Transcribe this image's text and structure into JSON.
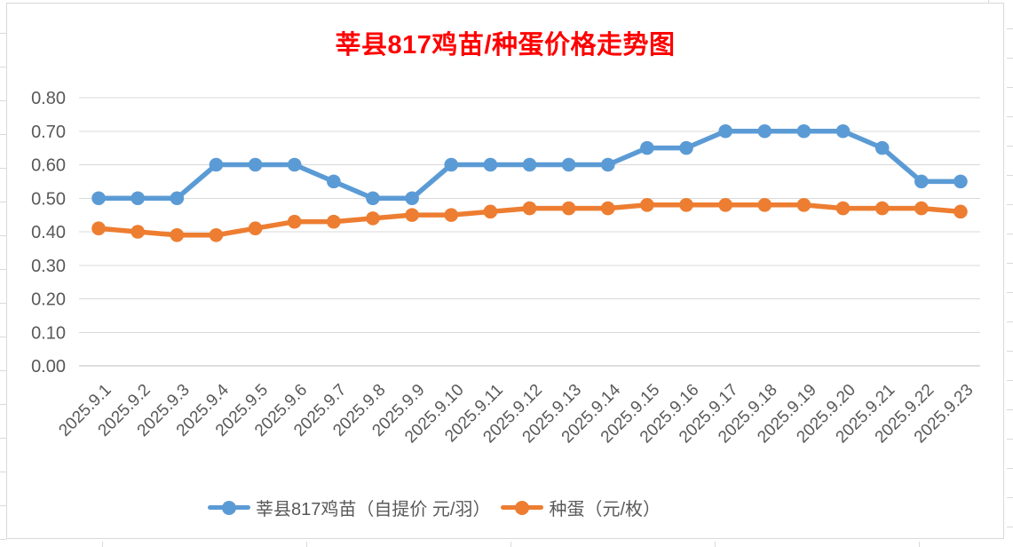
{
  "title": "莘县817鸡苗/种蛋价格走势图",
  "colors": {
    "title": "#FF0000",
    "axis_text": "#595959",
    "gridline": "#D9D9D9",
    "axis_line": "#BFBFBF",
    "chart_border": "#D9D9D9",
    "series1": "#5B9BD5",
    "series2": "#ED7D31"
  },
  "chart_data": {
    "type": "line",
    "title": "莘县817鸡苗/种蛋价格走势图",
    "categories": [
      "2025.9.1",
      "2025.9.2",
      "2025.9.3",
      "2025.9.4",
      "2025.9.5",
      "2025.9.6",
      "2025.9.7",
      "2025.9.8",
      "2025.9.9",
      "2025.9.10",
      "2025.9.11",
      "2025.9.12",
      "2025.9.13",
      "2025.9.14",
      "2025.9.15",
      "2025.9.16",
      "2025.9.17",
      "2025.9.18",
      "2025.9.19",
      "2025.9.20",
      "2025.9.21",
      "2025.9.22",
      "2025.9.23"
    ],
    "series": [
      {
        "name": "莘县817鸡苗（自提价 元/羽）",
        "color": "#5B9BD5",
        "values": [
          0.5,
          0.5,
          0.5,
          0.6,
          0.6,
          0.6,
          0.55,
          0.5,
          0.5,
          0.6,
          0.6,
          0.6,
          0.6,
          0.6,
          0.65,
          0.65,
          0.7,
          0.7,
          0.7,
          0.7,
          0.65,
          0.55,
          0.55
        ]
      },
      {
        "name": "种蛋（元/枚）",
        "color": "#ED7D31",
        "values": [
          0.41,
          0.4,
          0.39,
          0.39,
          0.41,
          0.43,
          0.43,
          0.44,
          0.45,
          0.45,
          0.46,
          0.47,
          0.47,
          0.47,
          0.48,
          0.48,
          0.48,
          0.48,
          0.48,
          0.47,
          0.47,
          0.47,
          0.46
        ]
      }
    ],
    "xlabel": "",
    "ylabel": "",
    "ylim": [
      0.0,
      0.8
    ],
    "ytick_labels": [
      "0.00",
      "0.10",
      "0.20",
      "0.30",
      "0.40",
      "0.50",
      "0.60",
      "0.70",
      "0.80"
    ],
    "grid": true,
    "legend_position": "bottom"
  }
}
